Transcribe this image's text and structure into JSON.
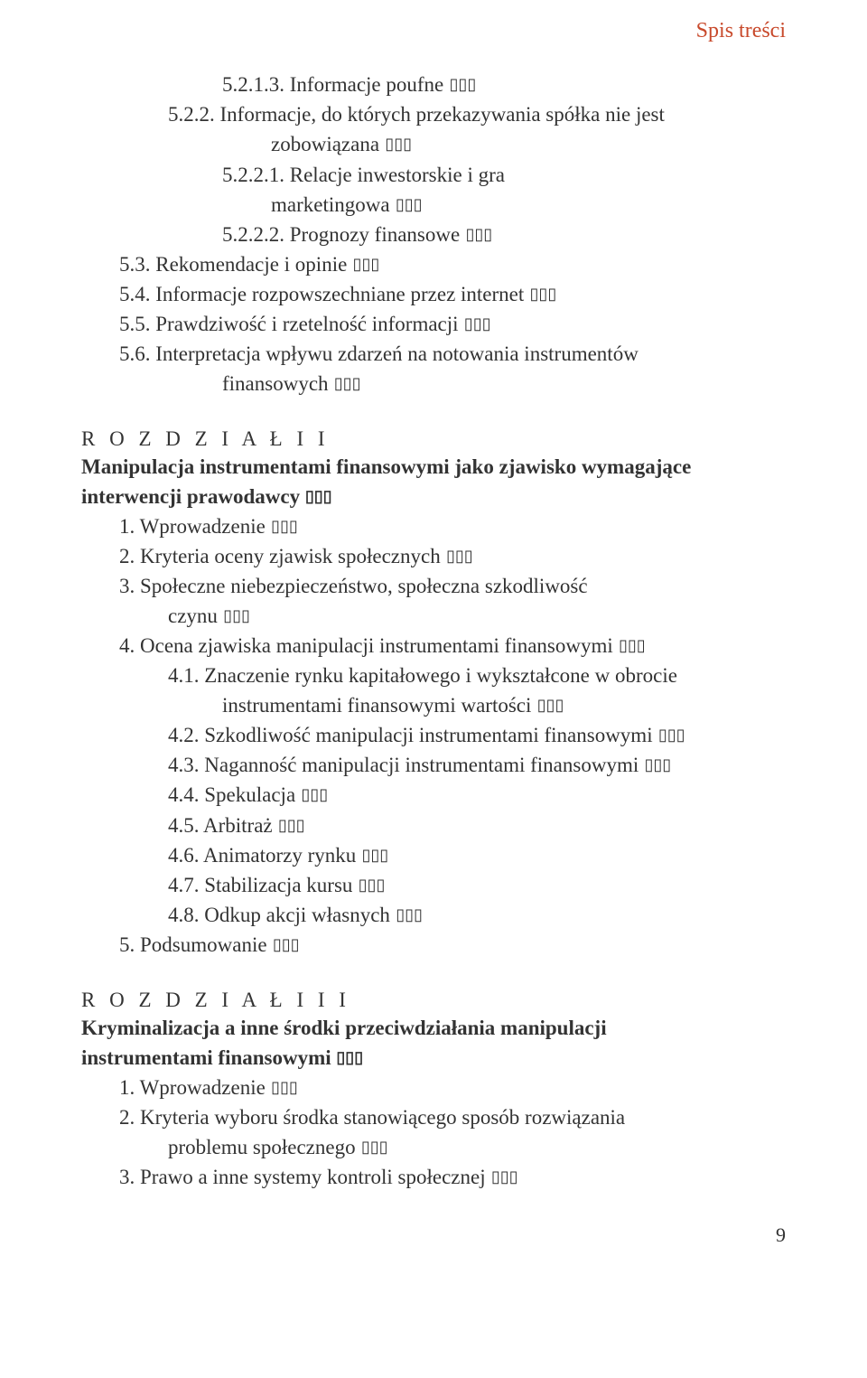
{
  "header": "Spis treści",
  "dots": " ...",
  "block1": [
    {
      "lvl": "l3",
      "num": "5.2.1.3.",
      "text": "Informacje poufne"
    },
    {
      "lvl": "l2",
      "num": "5.2.2.",
      "text": "Informacje, do których przekazywania spółka nie jest"
    },
    {
      "lvl": "l3-cont",
      "num": "",
      "text": "zobowiązana"
    },
    {
      "lvl": "l3",
      "num": "5.2.2.1.",
      "text": "Relacje inwestorskie i gra"
    },
    {
      "lvl": "l3-cont",
      "num": "",
      "text": "marketingowa"
    },
    {
      "lvl": "l3",
      "num": "5.2.2.2.",
      "text": "Prognozy finansowe"
    },
    {
      "lvl": "l1",
      "num": "5.3.",
      "text": "Rekomendacje i opinie"
    },
    {
      "lvl": "l1",
      "num": "5.4.",
      "text": "Informacje rozpowszechniane przez internet"
    },
    {
      "lvl": "l1",
      "num": "5.5.",
      "text": "Prawdziwość i rzetelność informacji"
    },
    {
      "lvl": "l1",
      "num": "5.6.",
      "text": "Interpretacja wpływu zdarzeń na notowania instrumentów"
    },
    {
      "lvl": "l2-cont",
      "num": "",
      "text": "finansowych"
    }
  ],
  "chapter2": {
    "label": "R O Z D Z I A Ł   I I",
    "titleLines": [
      "Manipulacja instrumentami finansowymi jako zjawisko wymagające",
      "interwencji prawodawcy"
    ],
    "items": [
      {
        "lvl": "l1",
        "num": "1.",
        "text": "Wprowadzenie"
      },
      {
        "lvl": "l1",
        "num": "2.",
        "text": "Kryteria oceny zjawisk społecznych"
      },
      {
        "lvl": "l1",
        "num": "3.",
        "text": "Społeczne niebezpieczeństwo, społeczna szkodliwość"
      },
      {
        "lvl": "l1-cont",
        "num": "",
        "text": "czynu"
      },
      {
        "lvl": "l1",
        "num": "4.",
        "text": "Ocena zjawiska manipulacji instrumentami finansowymi"
      },
      {
        "lvl": "l2",
        "num": "4.1.",
        "text": "Znaczenie rynku kapitałowego i wykształcone w obrocie"
      },
      {
        "lvl": "l2-cont",
        "num": "",
        "text": "instrumentami finansowymi wartości"
      },
      {
        "lvl": "l2",
        "num": "4.2.",
        "text": "Szkodliwość manipulacji instrumentami finansowymi"
      },
      {
        "lvl": "l2",
        "num": "4.3.",
        "text": "Naganność manipulacji instrumentami finansowymi"
      },
      {
        "lvl": "l2",
        "num": "4.4.",
        "text": "Spekulacja"
      },
      {
        "lvl": "l2",
        "num": "4.5.",
        "text": "Arbitraż"
      },
      {
        "lvl": "l2",
        "num": "4.6.",
        "text": "Animatorzy rynku"
      },
      {
        "lvl": "l2",
        "num": "4.7.",
        "text": "Stabilizacja kursu"
      },
      {
        "lvl": "l2",
        "num": "4.8.",
        "text": "Odkup akcji własnych"
      },
      {
        "lvl": "l1",
        "num": "5.",
        "text": "Podsumowanie"
      }
    ]
  },
  "chapter3": {
    "label": "R O Z D Z I A Ł   I I I",
    "titleLines": [
      "Kryminalizacja a inne środki przeciwdziałania manipulacji",
      "instrumentami finansowymi"
    ],
    "items": [
      {
        "lvl": "l1",
        "num": "1.",
        "text": "Wprowadzenie"
      },
      {
        "lvl": "l1",
        "num": "2.",
        "text": "Kryteria wyboru środka stanowiącego sposób rozwiązania"
      },
      {
        "lvl": "l1-cont",
        "num": "",
        "text": "problemu społecznego"
      },
      {
        "lvl": "l1",
        "num": "3.",
        "text": "Prawo a inne systemy kontroli społecznej"
      }
    ]
  },
  "footerPage": "9",
  "colors": {
    "accent": "#c8492b",
    "text": "#333333",
    "bg": "#ffffff"
  },
  "typography": {
    "bodyFontSize": 23,
    "headerFontSize": 24
  }
}
